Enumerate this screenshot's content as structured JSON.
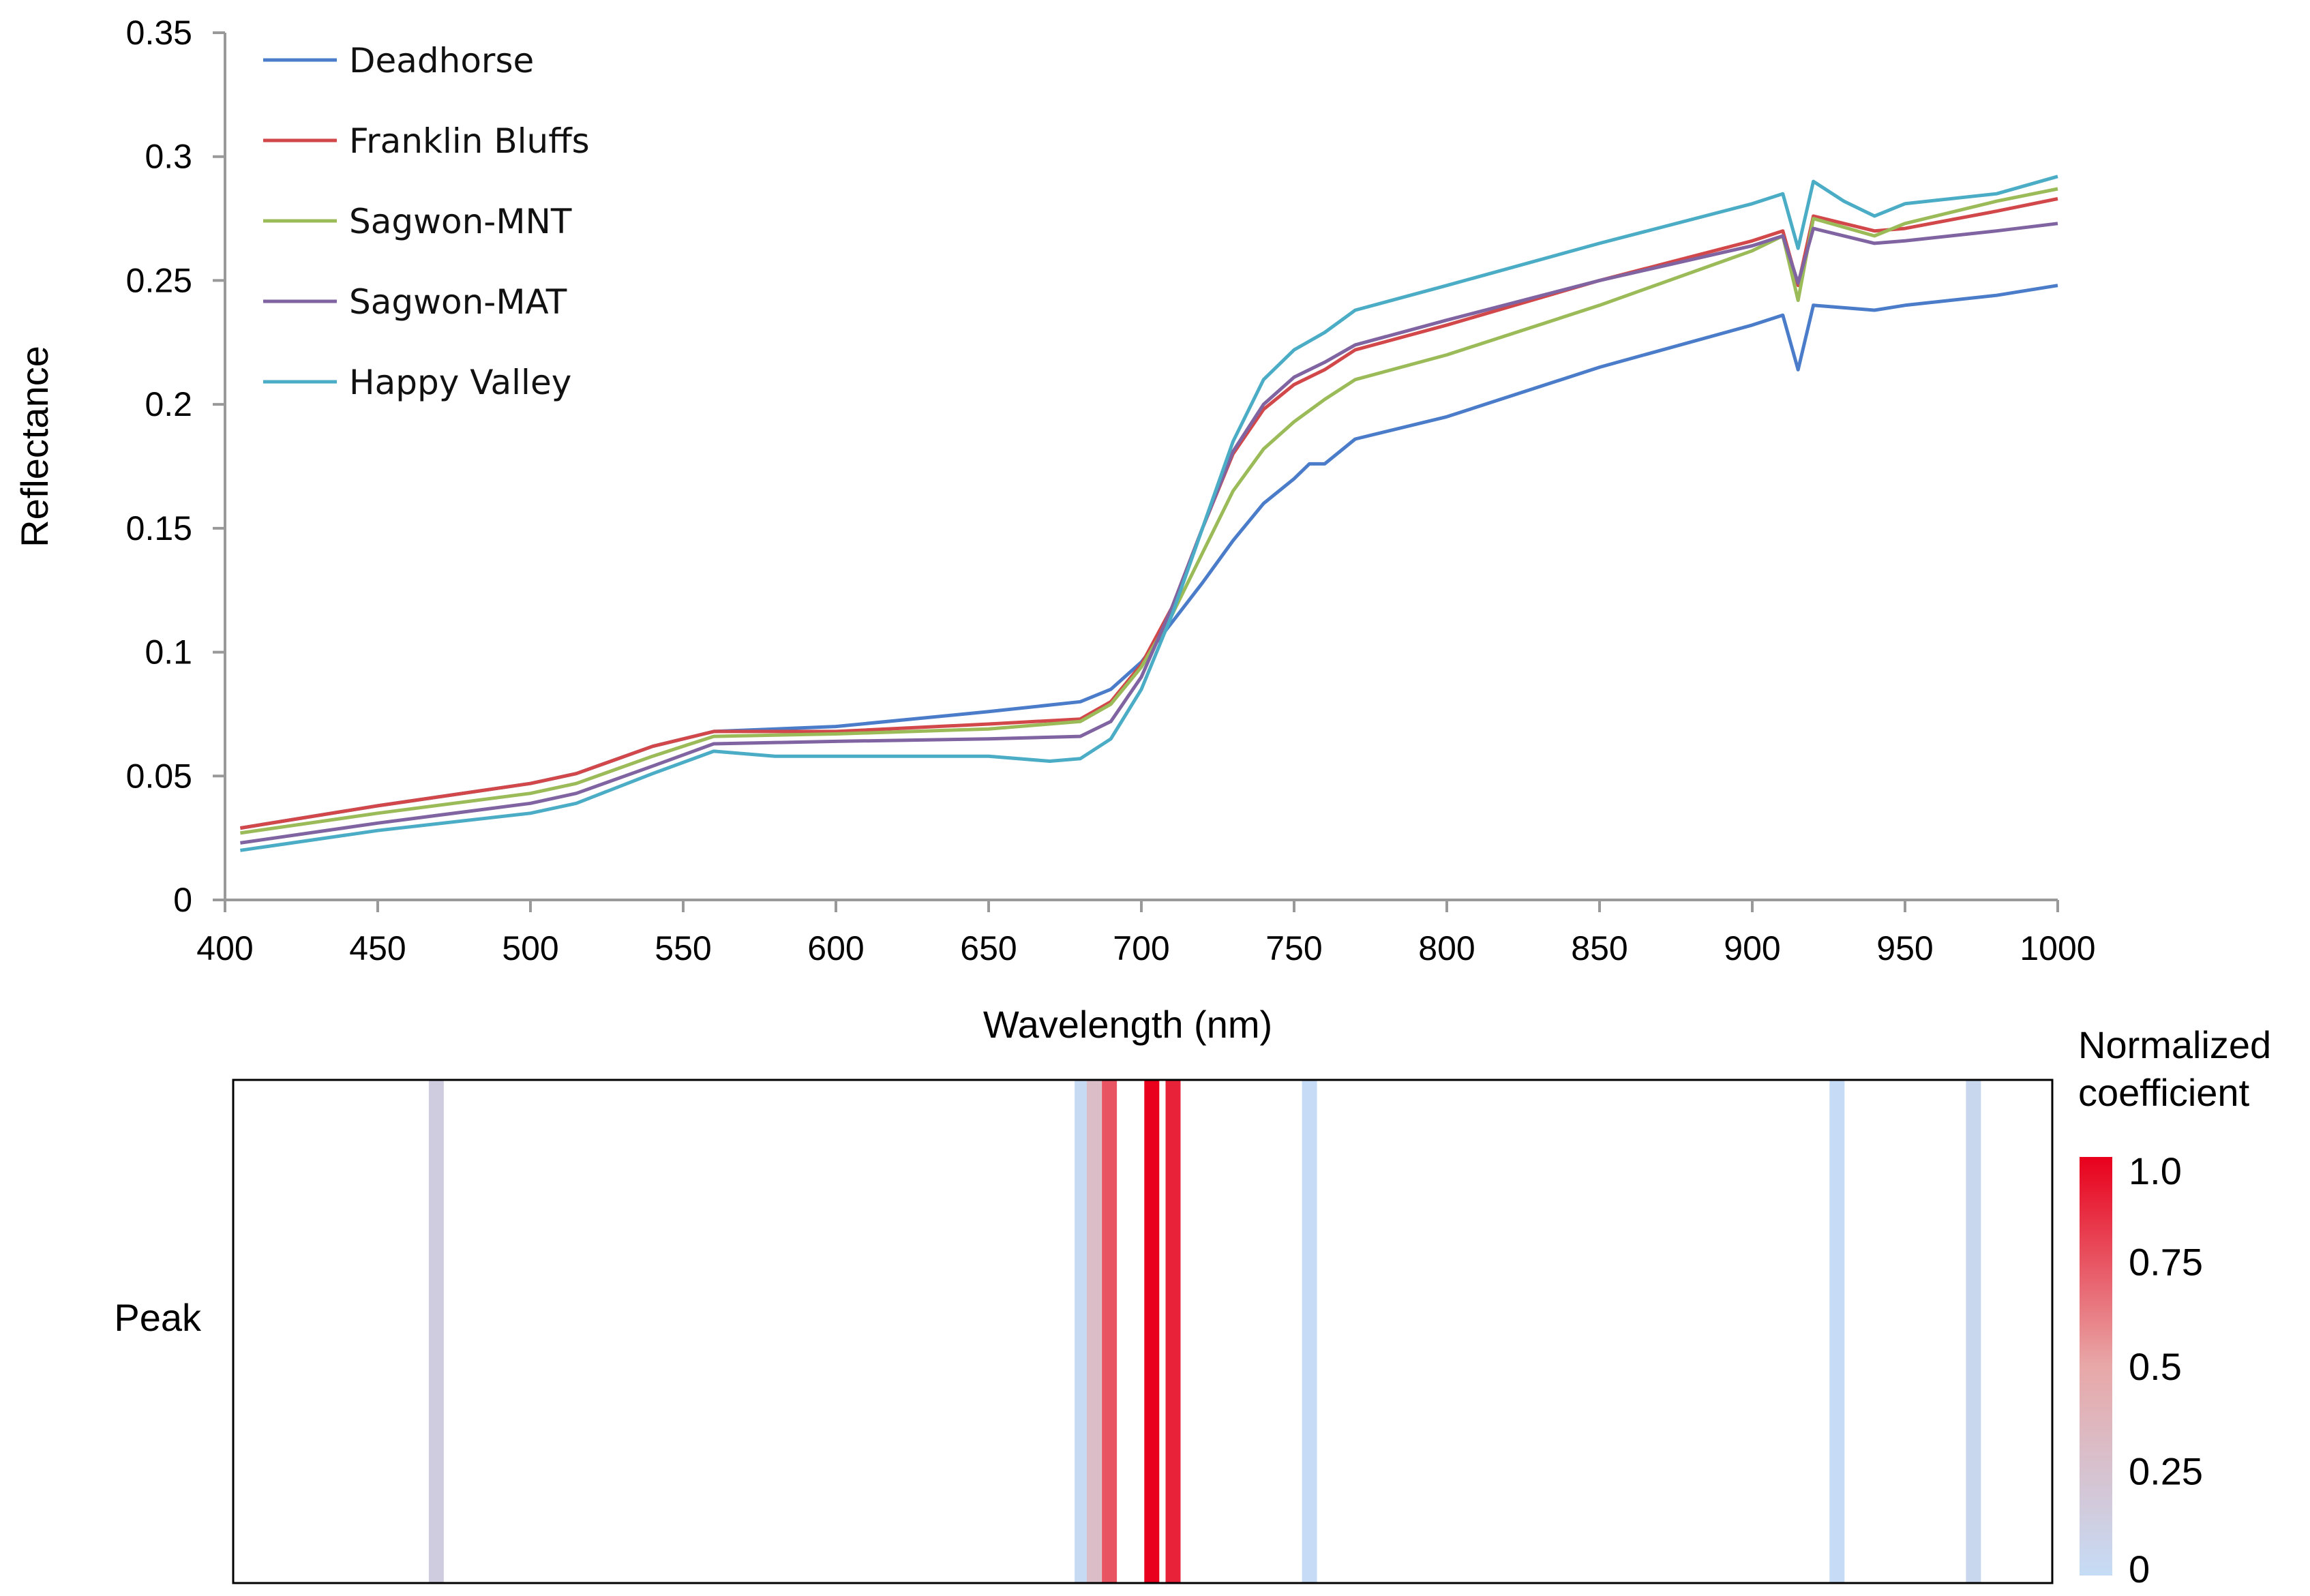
{
  "chart_data": [
    {
      "type": "line",
      "xlabel": "Wavelength (nm)",
      "ylabel": "Reflectance",
      "xlim": [
        400,
        1000
      ],
      "ylim": [
        0,
        0.35
      ],
      "xticks": [
        "400",
        "450",
        "500",
        "550",
        "600",
        "650",
        "700",
        "750",
        "800",
        "850",
        "900",
        "950",
        "1000"
      ],
      "yticks": [
        "0",
        "0.05",
        "0.1",
        "0.15",
        "0.2",
        "0.25",
        "0.3",
        "0.35"
      ],
      "legend_position": "top-left",
      "series": [
        {
          "name": "Deadhorse",
          "color": "#4A7CC9",
          "x": [
            405,
            450,
            500,
            515,
            540,
            560,
            600,
            650,
            680,
            690,
            700,
            710,
            720,
            730,
            740,
            750,
            755,
            760,
            770,
            800,
            850,
            900,
            910,
            915,
            920,
            940,
            950,
            980,
            1000
          ],
          "y": [
            0.029,
            0.038,
            0.047,
            0.051,
            0.062,
            0.068,
            0.07,
            0.076,
            0.08,
            0.085,
            0.096,
            0.112,
            0.128,
            0.145,
            0.16,
            0.17,
            0.176,
            0.176,
            0.186,
            0.195,
            0.215,
            0.232,
            0.236,
            0.214,
            0.24,
            0.238,
            0.24,
            0.244,
            0.248
          ]
        },
        {
          "name": "Franklin Bluffs",
          "color": "#D2484A",
          "x": [
            405,
            450,
            500,
            515,
            540,
            560,
            600,
            650,
            680,
            690,
            700,
            710,
            720,
            730,
            740,
            750,
            760,
            770,
            800,
            850,
            900,
            910,
            915,
            920,
            940,
            950,
            980,
            1000
          ],
          "y": [
            0.029,
            0.038,
            0.047,
            0.051,
            0.062,
            0.068,
            0.068,
            0.071,
            0.073,
            0.08,
            0.095,
            0.118,
            0.15,
            0.18,
            0.198,
            0.208,
            0.214,
            0.222,
            0.232,
            0.25,
            0.266,
            0.27,
            0.248,
            0.276,
            0.27,
            0.271,
            0.278,
            0.283
          ]
        },
        {
          "name": "Sagwon-MNT",
          "color": "#9BBB59",
          "x": [
            405,
            450,
            500,
            515,
            540,
            560,
            600,
            650,
            680,
            690,
            700,
            710,
            720,
            730,
            740,
            750,
            760,
            770,
            800,
            850,
            900,
            910,
            915,
            920,
            940,
            950,
            980,
            1000
          ],
          "y": [
            0.027,
            0.035,
            0.043,
            0.047,
            0.058,
            0.066,
            0.067,
            0.069,
            0.072,
            0.079,
            0.094,
            0.115,
            0.14,
            0.165,
            0.182,
            0.193,
            0.202,
            0.21,
            0.22,
            0.24,
            0.262,
            0.268,
            0.242,
            0.275,
            0.268,
            0.273,
            0.282,
            0.287
          ]
        },
        {
          "name": "Sagwon-MAT",
          "color": "#8064A2",
          "x": [
            405,
            450,
            500,
            515,
            540,
            560,
            600,
            650,
            680,
            690,
            700,
            710,
            720,
            730,
            740,
            750,
            760,
            770,
            800,
            850,
            900,
            910,
            915,
            920,
            940,
            950,
            980,
            1000
          ],
          "y": [
            0.023,
            0.031,
            0.039,
            0.043,
            0.054,
            0.063,
            0.064,
            0.065,
            0.066,
            0.072,
            0.09,
            0.118,
            0.15,
            0.181,
            0.2,
            0.211,
            0.217,
            0.224,
            0.234,
            0.25,
            0.264,
            0.268,
            0.249,
            0.271,
            0.265,
            0.266,
            0.27,
            0.273
          ]
        },
        {
          "name": "Happy Valley",
          "color": "#4BACC6",
          "x": [
            405,
            450,
            500,
            515,
            540,
            560,
            580,
            600,
            650,
            670,
            680,
            690,
            700,
            710,
            720,
            730,
            740,
            750,
            760,
            770,
            800,
            850,
            900,
            910,
            915,
            920,
            930,
            940,
            950,
            980,
            1000
          ],
          "y": [
            0.02,
            0.028,
            0.035,
            0.039,
            0.051,
            0.06,
            0.058,
            0.058,
            0.058,
            0.056,
            0.057,
            0.065,
            0.085,
            0.115,
            0.15,
            0.185,
            0.21,
            0.222,
            0.229,
            0.238,
            0.248,
            0.265,
            0.281,
            0.285,
            0.263,
            0.29,
            0.282,
            0.276,
            0.281,
            0.285,
            0.292
          ]
        }
      ]
    },
    {
      "type": "heatmap",
      "row_label": "Peak",
      "colorbar_title_line1": "Normalized",
      "colorbar_title_line2": "coefficient",
      "colorbar_ticks": [
        "1.0",
        "0.75",
        "0.5",
        "0.25",
        "0"
      ],
      "colorbar_range": [
        0,
        1
      ],
      "xlim": [
        400,
        1000
      ],
      "bands": [
        {
          "wavelength": 467,
          "value": 0.15
        },
        {
          "wavelength": 680,
          "value": 0.02
        },
        {
          "wavelength": 684,
          "value": 0.3
        },
        {
          "wavelength": 689,
          "value": 0.75
        },
        {
          "wavelength": 703,
          "value": 1.0
        },
        {
          "wavelength": 710,
          "value": 0.9
        },
        {
          "wavelength": 755,
          "value": 0.0
        },
        {
          "wavelength": 929,
          "value": 0.0
        },
        {
          "wavelength": 974,
          "value": 0.05
        }
      ]
    }
  ]
}
